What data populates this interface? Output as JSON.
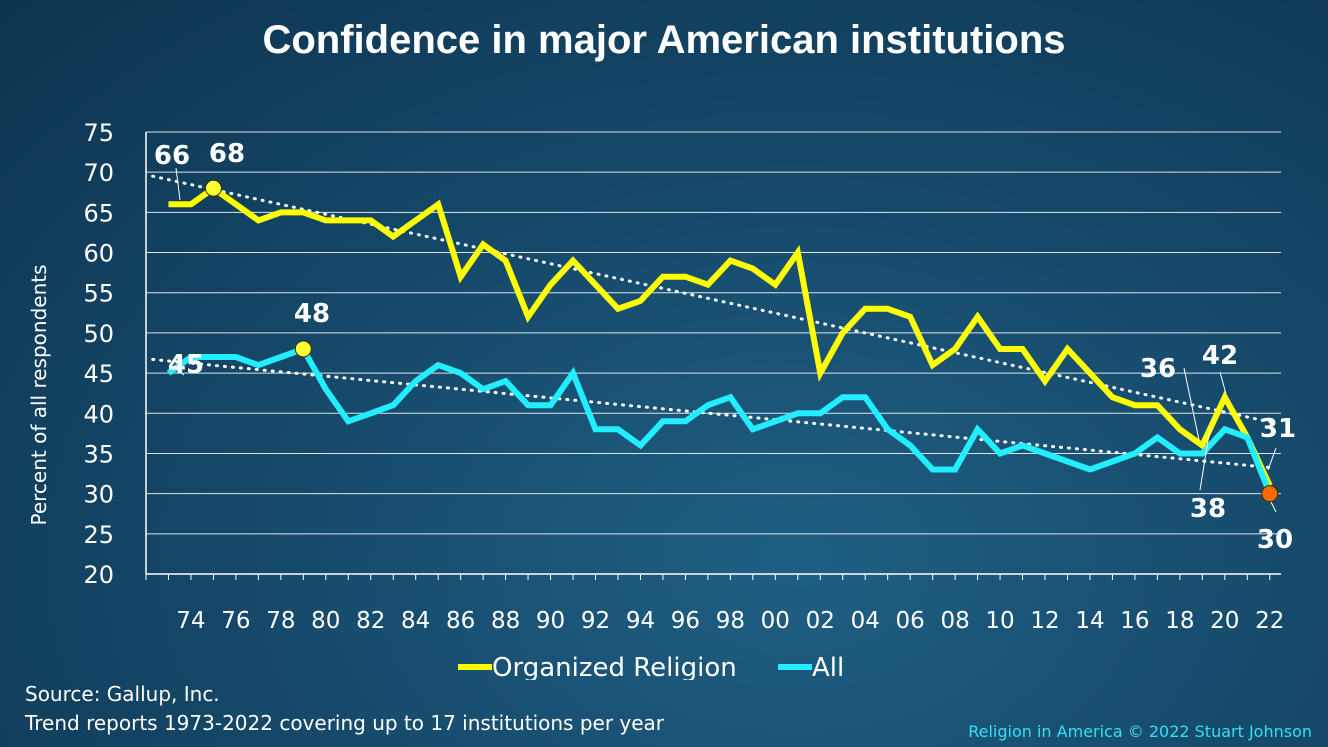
{
  "title": "Confidence in major American institutions",
  "source": "Source: Gallup, Inc.",
  "note": "Trend reports 1973-2022 covering up to 17 institutions per year",
  "credit": "Religion in America © 2022 Stuart Johnson",
  "colors": {
    "religion": "#ffff00",
    "all": "#22eeff",
    "highlight_2022": "#ff6a00"
  },
  "chart_data": {
    "type": "line",
    "ylabel": "Percent of all respondents",
    "xlabel": "",
    "ylim": [
      20,
      75
    ],
    "yticks": [
      20,
      25,
      30,
      35,
      40,
      45,
      50,
      55,
      60,
      65,
      70,
      75
    ],
    "xlim": [
      1972,
      2022.5
    ],
    "xtick_years": [
      1974,
      1976,
      1978,
      1980,
      1982,
      1984,
      1986,
      1988,
      1990,
      1992,
      1994,
      1996,
      1998,
      2000,
      2002,
      2004,
      2006,
      2008,
      2010,
      2012,
      2014,
      2016,
      2018,
      2020,
      2022
    ],
    "xtick_labels": [
      "74",
      "76",
      "78",
      "80",
      "82",
      "84",
      "86",
      "88",
      "90",
      "92",
      "94",
      "96",
      "98",
      "00",
      "02",
      "04",
      "06",
      "08",
      "10",
      "12",
      "14",
      "16",
      "18",
      "20",
      "22"
    ],
    "grid": true,
    "legend": "bottom",
    "series": [
      {
        "name": "Organized Religion",
        "x": [
          1973,
          1974,
          1975,
          1976,
          1977,
          1978,
          1979,
          1980,
          1981,
          1982,
          1983,
          1984,
          1985,
          1986,
          1987,
          1988,
          1989,
          1990,
          1991,
          1992,
          1993,
          1994,
          1995,
          1996,
          1997,
          1998,
          1999,
          2000,
          2001,
          2002,
          2003,
          2004,
          2005,
          2006,
          2007,
          2008,
          2009,
          2010,
          2011,
          2012,
          2013,
          2014,
          2015,
          2016,
          2017,
          2018,
          2019,
          2020,
          2021,
          2022
        ],
        "y": [
          66,
          66,
          68,
          66,
          64,
          65,
          65,
          64,
          64,
          64,
          62,
          64,
          66,
          57,
          61,
          59,
          52,
          56,
          59,
          56,
          53,
          54,
          57,
          57,
          56,
          59,
          58,
          56,
          60,
          45,
          50,
          53,
          53,
          52,
          46,
          48,
          52,
          48,
          48,
          44,
          48,
          45,
          42,
          41,
          41,
          38,
          36,
          42,
          37,
          31
        ],
        "trend": [
          69.5,
          38.8
        ]
      },
      {
        "name": "All",
        "x": [
          1973,
          1974,
          1975,
          1976,
          1977,
          1978,
          1979,
          1980,
          1981,
          1982,
          1983,
          1984,
          1985,
          1986,
          1987,
          1988,
          1989,
          1990,
          1991,
          1992,
          1993,
          1994,
          1995,
          1996,
          1997,
          1998,
          1999,
          2000,
          2001,
          2002,
          2003,
          2004,
          2005,
          2006,
          2007,
          2008,
          2009,
          2010,
          2011,
          2012,
          2013,
          2014,
          2015,
          2016,
          2017,
          2018,
          2019,
          2020,
          2021,
          2022
        ],
        "y": [
          45,
          47,
          47,
          47,
          46,
          47,
          48,
          43,
          39,
          40,
          41,
          44,
          46,
          45,
          43,
          44,
          41,
          41,
          45,
          38,
          38,
          36,
          39,
          39,
          41,
          42,
          38,
          39,
          40,
          40,
          42,
          42,
          38,
          36,
          33,
          33,
          38,
          35,
          36,
          35,
          34,
          33,
          34,
          35,
          37,
          35,
          35,
          38,
          37,
          30
        ],
        "trend": [
          46.7,
          33.2
        ]
      }
    ],
    "annotations": [
      {
        "text": "66",
        "series": "Organized Religion",
        "year": 1973
      },
      {
        "text": "68",
        "series": "Organized Religion",
        "year": 1975
      },
      {
        "text": "36",
        "series": "Organized Religion",
        "year": 2019
      },
      {
        "text": "42",
        "series": "Organized Religion",
        "year": 2020
      },
      {
        "text": "31",
        "series": "Organized Religion",
        "year": 2022
      },
      {
        "text": "45",
        "series": "All",
        "year": 1973
      },
      {
        "text": "48",
        "series": "All",
        "year": 1979
      },
      {
        "text": "38",
        "series": "All",
        "year": 2020
      },
      {
        "text": "30",
        "series": "All",
        "year": 2022
      }
    ]
  }
}
